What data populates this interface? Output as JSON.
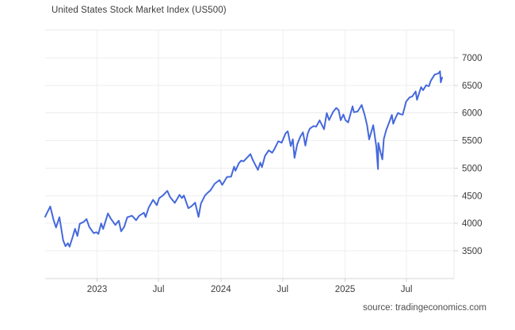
{
  "header": {
    "title": "United States Stock Market Index (US500)"
  },
  "footer": {
    "source": "source: tradingeconomics.com"
  },
  "colors": {
    "line": "#4569dc",
    "grid_h": "#ededed",
    "grid_v": "#efefef",
    "plot_border": "#e9e9e9",
    "axis_line": "#d6d6d6",
    "tick_mark": "#d0d0d0",
    "label_text": "#3c3c3c",
    "source_text": "#4f4f4f",
    "background": "#ffffff"
  },
  "chart_data": {
    "type": "line",
    "title": "United States Stock Market Index (US500)",
    "source": "source: tradingeconomics.com",
    "xlabel": "",
    "ylabel": "",
    "grid": true,
    "legend": "none",
    "ylim": [
      3000,
      7500
    ],
    "y_ticks": [
      3500,
      4000,
      4500,
      5000,
      5500,
      6000,
      6500,
      7000
    ],
    "y_tick_side": "right",
    "x_domain": [
      "2022-08-01",
      "2025-11-18"
    ],
    "x_ticks": [
      {
        "label": "2023",
        "date": "2023-01-01"
      },
      {
        "label": "Jul",
        "date": "2023-07-01"
      },
      {
        "label": "2024",
        "date": "2024-01-01"
      },
      {
        "label": "Jul",
        "date": "2024-07-01"
      },
      {
        "label": "2025",
        "date": "2025-01-01"
      },
      {
        "label": "Jul",
        "date": "2025-07-01"
      }
    ],
    "series": [
      {
        "name": "US500",
        "color": "#4569dc",
        "points": [
          [
            "2022-08-01",
            4120
          ],
          [
            "2022-08-16",
            4305
          ],
          [
            "2022-08-26",
            4058
          ],
          [
            "2022-09-02",
            3924
          ],
          [
            "2022-09-12",
            4110
          ],
          [
            "2022-09-23",
            3693
          ],
          [
            "2022-09-30",
            3586
          ],
          [
            "2022-10-07",
            3640
          ],
          [
            "2022-10-12",
            3577
          ],
          [
            "2022-10-21",
            3753
          ],
          [
            "2022-10-28",
            3901
          ],
          [
            "2022-11-04",
            3771
          ],
          [
            "2022-11-11",
            3993
          ],
          [
            "2022-11-23",
            4027
          ],
          [
            "2022-12-01",
            4077
          ],
          [
            "2022-12-09",
            3934
          ],
          [
            "2022-12-22",
            3822
          ],
          [
            "2022-12-30",
            3840
          ],
          [
            "2023-01-05",
            3808
          ],
          [
            "2023-01-13",
            3999
          ],
          [
            "2023-01-19",
            3899
          ],
          [
            "2023-02-02",
            4180
          ],
          [
            "2023-02-10",
            4090
          ],
          [
            "2023-02-24",
            3970
          ],
          [
            "2023-03-06",
            4048
          ],
          [
            "2023-03-13",
            3856
          ],
          [
            "2023-03-22",
            3937
          ],
          [
            "2023-03-31",
            4109
          ],
          [
            "2023-04-14",
            4138
          ],
          [
            "2023-04-26",
            4056
          ],
          [
            "2023-05-05",
            4136
          ],
          [
            "2023-05-19",
            4192
          ],
          [
            "2023-05-24",
            4115
          ],
          [
            "2023-06-02",
            4282
          ],
          [
            "2023-06-15",
            4426
          ],
          [
            "2023-06-26",
            4329
          ],
          [
            "2023-07-03",
            4456
          ],
          [
            "2023-07-14",
            4505
          ],
          [
            "2023-07-27",
            4588
          ],
          [
            "2023-08-04",
            4478
          ],
          [
            "2023-08-18",
            4370
          ],
          [
            "2023-09-01",
            4516
          ],
          [
            "2023-09-08",
            4457
          ],
          [
            "2023-09-14",
            4505
          ],
          [
            "2023-09-27",
            4274
          ],
          [
            "2023-10-06",
            4309
          ],
          [
            "2023-10-17",
            4374
          ],
          [
            "2023-10-27",
            4117
          ],
          [
            "2023-11-03",
            4358
          ],
          [
            "2023-11-15",
            4503
          ],
          [
            "2023-11-24",
            4559
          ],
          [
            "2023-12-01",
            4595
          ],
          [
            "2023-12-14",
            4720
          ],
          [
            "2023-12-28",
            4783
          ],
          [
            "2024-01-05",
            4697
          ],
          [
            "2024-01-19",
            4840
          ],
          [
            "2024-01-31",
            4846
          ],
          [
            "2024-02-09",
            5027
          ],
          [
            "2024-02-13",
            4953
          ],
          [
            "2024-02-23",
            5089
          ],
          [
            "2024-03-01",
            5137
          ],
          [
            "2024-03-08",
            5124
          ],
          [
            "2024-03-28",
            5254
          ],
          [
            "2024-04-04",
            5147
          ],
          [
            "2024-04-19",
            4967
          ],
          [
            "2024-04-26",
            5100
          ],
          [
            "2024-05-01",
            5018
          ],
          [
            "2024-05-10",
            5223
          ],
          [
            "2024-05-21",
            5321
          ],
          [
            "2024-05-31",
            5278
          ],
          [
            "2024-06-07",
            5347
          ],
          [
            "2024-06-18",
            5487
          ],
          [
            "2024-06-28",
            5460
          ],
          [
            "2024-07-10",
            5634
          ],
          [
            "2024-07-16",
            5667
          ],
          [
            "2024-07-25",
            5399
          ],
          [
            "2024-07-31",
            5522
          ],
          [
            "2024-08-05",
            5186
          ],
          [
            "2024-08-13",
            5434
          ],
          [
            "2024-08-22",
            5570
          ],
          [
            "2024-08-30",
            5648
          ],
          [
            "2024-09-06",
            5408
          ],
          [
            "2024-09-13",
            5626
          ],
          [
            "2024-09-19",
            5714
          ],
          [
            "2024-09-30",
            5762
          ],
          [
            "2024-10-08",
            5751
          ],
          [
            "2024-10-18",
            5865
          ],
          [
            "2024-10-31",
            5705
          ],
          [
            "2024-11-08",
            5996
          ],
          [
            "2024-11-15",
            5871
          ],
          [
            "2024-11-27",
            6022
          ],
          [
            "2024-12-06",
            6090
          ],
          [
            "2024-12-13",
            6051
          ],
          [
            "2024-12-19",
            5867
          ],
          [
            "2024-12-27",
            5971
          ],
          [
            "2025-01-02",
            5869
          ],
          [
            "2025-01-10",
            5827
          ],
          [
            "2025-01-23",
            6119
          ],
          [
            "2025-01-27",
            6012
          ],
          [
            "2025-02-07",
            6026
          ],
          [
            "2025-02-19",
            6144
          ],
          [
            "2025-02-28",
            5955
          ],
          [
            "2025-03-07",
            5770
          ],
          [
            "2025-03-13",
            5521
          ],
          [
            "2025-03-25",
            5777
          ],
          [
            "2025-04-03",
            5396
          ],
          [
            "2025-04-08",
            4983
          ],
          [
            "2025-04-09",
            5457
          ],
          [
            "2025-04-16",
            5276
          ],
          [
            "2025-04-21",
            5158
          ],
          [
            "2025-04-25",
            5525
          ],
          [
            "2025-05-02",
            5687
          ],
          [
            "2025-05-12",
            5844
          ],
          [
            "2025-05-19",
            5963
          ],
          [
            "2025-05-23",
            5803
          ],
          [
            "2025-05-30",
            5912
          ],
          [
            "2025-06-06",
            6000
          ],
          [
            "2025-06-13",
            5977
          ],
          [
            "2025-06-20",
            5968
          ],
          [
            "2025-06-30",
            6205
          ],
          [
            "2025-07-10",
            6280
          ],
          [
            "2025-07-18",
            6297
          ],
          [
            "2025-07-28",
            6390
          ],
          [
            "2025-08-01",
            6238
          ],
          [
            "2025-08-13",
            6467
          ],
          [
            "2025-08-19",
            6411
          ],
          [
            "2025-08-28",
            6501
          ],
          [
            "2025-09-05",
            6482
          ],
          [
            "2025-09-11",
            6587
          ],
          [
            "2025-09-22",
            6693
          ],
          [
            "2025-10-03",
            6716
          ],
          [
            "2025-10-08",
            6754
          ],
          [
            "2025-10-10",
            6552
          ],
          [
            "2025-10-14",
            6640
          ]
        ]
      }
    ]
  }
}
